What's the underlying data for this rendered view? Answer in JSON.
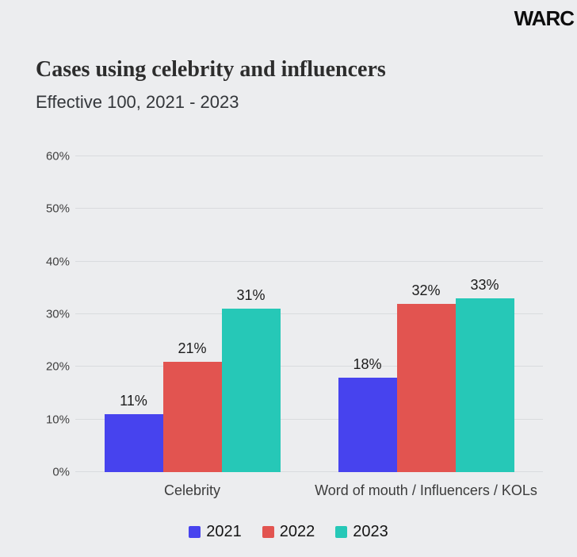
{
  "header": {
    "logo": "WARC"
  },
  "title": "Cases using celebrity and influencers",
  "subtitle": "Effective 100, 2021 - 2023",
  "chart_data": {
    "type": "bar",
    "title": "Cases using celebrity and influencers",
    "subtitle": "Effective 100, 2021 - 2023",
    "categories": [
      "Celebrity",
      "Word of mouth / Influencers / KOLs"
    ],
    "series": [
      {
        "name": "2021",
        "color": "#4743ee",
        "values": [
          11,
          18
        ]
      },
      {
        "name": "2022",
        "color": "#e25450",
        "values": [
          21,
          32
        ]
      },
      {
        "name": "2023",
        "color": "#26c8b7",
        "values": [
          31,
          33
        ]
      }
    ],
    "data_labels": [
      [
        "11%",
        "21%",
        "31%"
      ],
      [
        "18%",
        "32%",
        "33%"
      ]
    ],
    "value_suffix": "%",
    "xlabel": "",
    "ylabel": "",
    "ylim": [
      0,
      60
    ],
    "yticks": [
      "0%",
      "10%",
      "20%",
      "30%",
      "40%",
      "50%",
      "60%"
    ],
    "grid": true,
    "legend_position": "bottom"
  },
  "colors": {
    "background": "#ecedef",
    "gridline": "#d9dbde",
    "title_text": "#2d2d2d",
    "subtitle_text": "#33363a",
    "axis_text": "#404040",
    "data_label_text": "#1b1b1b"
  }
}
